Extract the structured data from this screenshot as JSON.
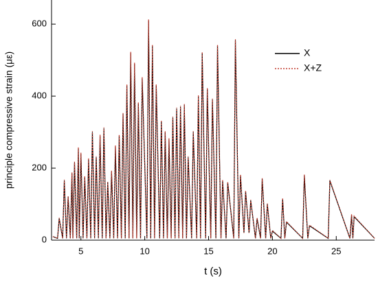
{
  "chart_data": {
    "type": "line",
    "xlabel": "t (s)",
    "ylabel": "principle compressive strain (με)",
    "xlim": [
      2.7,
      28
    ],
    "ylim": [
      0,
      667
    ],
    "xticks": [
      5,
      10,
      15,
      20,
      25
    ],
    "yticks": [
      0,
      200,
      400,
      600
    ],
    "legend": "upper right",
    "x": [
      2.8,
      3.17,
      3.3,
      3.57,
      3.7,
      3.87,
      4.0,
      4.17,
      4.3,
      4.37,
      4.5,
      4.67,
      4.8,
      4.87,
      5.0,
      5.17,
      5.3,
      5.47,
      5.6,
      5.77,
      5.9,
      6.07,
      6.2,
      6.37,
      6.5,
      6.67,
      6.8,
      6.97,
      7.1,
      7.27,
      7.4,
      7.57,
      7.7,
      7.87,
      8.0,
      8.17,
      8.3,
      8.47,
      8.6,
      8.77,
      8.9,
      9.07,
      9.2,
      9.37,
      9.5,
      9.67,
      9.8,
      10.17,
      10.3,
      10.47,
      10.6,
      10.77,
      10.9,
      11.17,
      11.3,
      11.47,
      11.6,
      11.77,
      11.9,
      12.07,
      12.2,
      12.37,
      12.5,
      12.67,
      12.8,
      12.97,
      13.1,
      13.27,
      13.4,
      13.67,
      13.8,
      14.07,
      14.2,
      14.37,
      14.5,
      14.77,
      14.9,
      15.17,
      15.3,
      15.57,
      15.7,
      15.97,
      16.1,
      16.37,
      16.5,
      16.97,
      17.1,
      17.37,
      17.5,
      17.77,
      17.9,
      18.17,
      18.3,
      18.67,
      18.8,
      19.07,
      19.2,
      19.47,
      19.6,
      19.87,
      20.0,
      20.67,
      20.8,
      20.97,
      21.1,
      22.37,
      22.5,
      22.77,
      22.9,
      24.37,
      24.5,
      26.07,
      26.2,
      26.3,
      26.4,
      28
    ],
    "series": [
      {
        "name": "X",
        "color": "#000000",
        "dash": "none",
        "values": [
          10,
          5,
          60,
          5,
          165,
          5,
          120,
          5,
          185,
          5,
          215,
          5,
          255,
          5,
          240,
          5,
          175,
          5,
          225,
          5,
          300,
          5,
          230,
          5,
          290,
          5,
          310,
          5,
          160,
          5,
          190,
          5,
          260,
          5,
          290,
          5,
          350,
          5,
          430,
          5,
          520,
          5,
          490,
          5,
          380,
          5,
          450,
          5,
          610,
          5,
          540,
          5,
          430,
          5,
          330,
          5,
          300,
          5,
          280,
          5,
          340,
          5,
          365,
          5,
          370,
          5,
          375,
          5,
          230,
          5,
          300,
          5,
          400,
          5,
          520,
          5,
          420,
          5,
          390,
          5,
          540,
          5,
          165,
          5,
          160,
          5,
          555,
          5,
          180,
          20,
          135,
          20,
          110,
          5,
          60,
          5,
          170,
          5,
          100,
          5,
          25,
          5,
          115,
          5,
          50,
          5,
          180,
          5,
          40,
          5,
          165,
          5,
          70,
          5,
          65,
          5
        ]
      },
      {
        "name": "X+Z",
        "color": "#c0392b",
        "dash": "2,2",
        "values": [
          10,
          5,
          62,
          5,
          168,
          5,
          122,
          5,
          188,
          5,
          218,
          5,
          258,
          5,
          243,
          5,
          178,
          5,
          228,
          5,
          303,
          5,
          233,
          5,
          293,
          5,
          313,
          5,
          162,
          5,
          193,
          5,
          263,
          5,
          293,
          5,
          353,
          5,
          433,
          5,
          523,
          5,
          493,
          5,
          383,
          5,
          453,
          5,
          613,
          5,
          543,
          5,
          433,
          5,
          333,
          5,
          303,
          5,
          283,
          5,
          343,
          5,
          368,
          5,
          373,
          5,
          378,
          5,
          233,
          5,
          303,
          5,
          403,
          5,
          523,
          5,
          423,
          5,
          393,
          5,
          543,
          5,
          168,
          5,
          162,
          5,
          558,
          5,
          182,
          20,
          138,
          20,
          112,
          5,
          62,
          5,
          172,
          5,
          102,
          5,
          27,
          5,
          117,
          5,
          52,
          5,
          182,
          5,
          42,
          5,
          167,
          5,
          72,
          5,
          67,
          5
        ]
      }
    ]
  }
}
